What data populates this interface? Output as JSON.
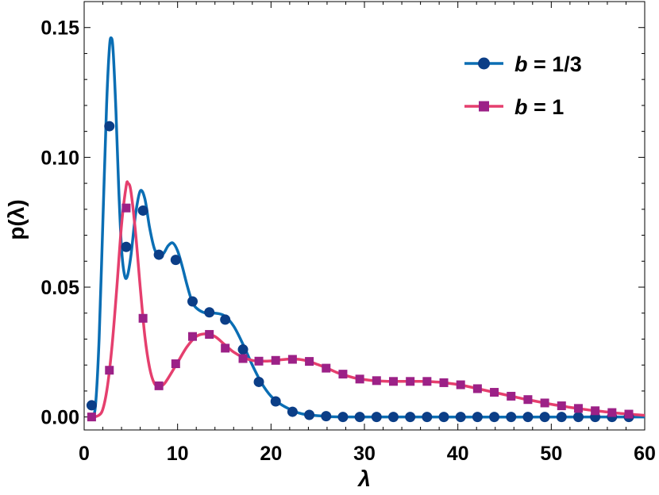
{
  "chart_data": {
    "type": "line",
    "xlabel": "λ",
    "ylabel": "p(λ)",
    "xlim": [
      0,
      60
    ],
    "ylim": [
      -0.005,
      0.16
    ],
    "xticks": [
      "0",
      "10",
      "20",
      "30",
      "40",
      "50",
      "60"
    ],
    "yticks": [
      "0.00",
      "0.05",
      "0.10",
      "0.15"
    ],
    "grid": false,
    "legend_position": "top-right",
    "series": [
      {
        "name": "b = 1/3",
        "name_var": "b",
        "name_rest": " = 1/3",
        "color": "#0A6EB4",
        "marker_color": "#0B3E87",
        "marker": "circle",
        "curve": [
          [
            0.8,
            0.0
          ],
          [
            1.2,
            0.004
          ],
          [
            1.6,
            0.03
          ],
          [
            2.0,
            0.075
          ],
          [
            2.4,
            0.12
          ],
          [
            2.7,
            0.142
          ],
          [
            2.9,
            0.146
          ],
          [
            3.1,
            0.141
          ],
          [
            3.4,
            0.118
          ],
          [
            3.7,
            0.088
          ],
          [
            4.0,
            0.065
          ],
          [
            4.3,
            0.055
          ],
          [
            4.6,
            0.054
          ],
          [
            5.0,
            0.062
          ],
          [
            5.5,
            0.078
          ],
          [
            6.0,
            0.087
          ],
          [
            6.5,
            0.084
          ],
          [
            7.0,
            0.073
          ],
          [
            7.5,
            0.065
          ],
          [
            8.0,
            0.062
          ],
          [
            8.5,
            0.063
          ],
          [
            9.0,
            0.066
          ],
          [
            9.5,
            0.067
          ],
          [
            10.0,
            0.064
          ],
          [
            10.5,
            0.058
          ],
          [
            11.0,
            0.051
          ],
          [
            11.5,
            0.045
          ],
          [
            12.0,
            0.042
          ],
          [
            13.0,
            0.04
          ],
          [
            14.0,
            0.04
          ],
          [
            15.0,
            0.039
          ],
          [
            16.0,
            0.035
          ],
          [
            17.0,
            0.028
          ],
          [
            18.0,
            0.02
          ],
          [
            19.0,
            0.013
          ],
          [
            20.0,
            0.008
          ],
          [
            21.0,
            0.005
          ],
          [
            22.0,
            0.003
          ],
          [
            23.0,
            0.0015
          ],
          [
            24.0,
            0.0008
          ],
          [
            26.0,
            0.0003
          ],
          [
            30.0,
            0.0
          ],
          [
            60.0,
            0.0
          ]
        ],
        "markers": [
          [
            0.8,
            0.0045
          ],
          [
            2.7,
            0.112
          ],
          [
            4.5,
            0.0655
          ],
          [
            6.3,
            0.0795
          ],
          [
            8.0,
            0.0625
          ],
          [
            9.8,
            0.0605
          ],
          [
            11.6,
            0.0445
          ],
          [
            13.4,
            0.0403
          ],
          [
            15.1,
            0.0375
          ],
          [
            17.0,
            0.026
          ],
          [
            18.7,
            0.0135
          ],
          [
            20.5,
            0.006
          ],
          [
            22.3,
            0.002
          ],
          [
            24.1,
            0.0008
          ],
          [
            25.9,
            0.0003
          ],
          [
            27.7,
            0.0
          ],
          [
            29.5,
            0.0
          ],
          [
            31.3,
            0.0
          ],
          [
            33.1,
            0.0
          ],
          [
            34.9,
            0.0
          ],
          [
            36.7,
            0.0
          ],
          [
            38.5,
            0.0
          ],
          [
            40.3,
            0.0
          ],
          [
            42.1,
            0.0
          ],
          [
            43.9,
            0.0
          ],
          [
            45.7,
            0.0
          ],
          [
            47.5,
            0.0
          ],
          [
            49.3,
            0.0
          ],
          [
            51.1,
            0.0
          ],
          [
            52.9,
            0.0
          ],
          [
            54.7,
            0.0
          ],
          [
            56.5,
            0.0
          ],
          [
            58.3,
            0.0
          ]
        ]
      },
      {
        "name": "b = 1",
        "name_var": "b",
        "name_rest": " = 1",
        "color": "#E53F6E",
        "marker_color": "#9C2187",
        "marker": "square",
        "curve": [
          [
            0.8,
            0.0
          ],
          [
            1.5,
            0.0005
          ],
          [
            2.0,
            0.003
          ],
          [
            2.5,
            0.012
          ],
          [
            3.0,
            0.028
          ],
          [
            3.5,
            0.05
          ],
          [
            4.0,
            0.074
          ],
          [
            4.5,
            0.089
          ],
          [
            4.7,
            0.09
          ],
          [
            5.0,
            0.087
          ],
          [
            5.5,
            0.071
          ],
          [
            6.0,
            0.05
          ],
          [
            6.5,
            0.031
          ],
          [
            7.0,
            0.019
          ],
          [
            7.5,
            0.013
          ],
          [
            8.0,
            0.0118
          ],
          [
            8.5,
            0.0125
          ],
          [
            9.0,
            0.015
          ],
          [
            10.0,
            0.021
          ],
          [
            11.0,
            0.027
          ],
          [
            12.0,
            0.031
          ],
          [
            13.0,
            0.032
          ],
          [
            14.0,
            0.031
          ],
          [
            15.0,
            0.028
          ],
          [
            16.0,
            0.025
          ],
          [
            17.0,
            0.023
          ],
          [
            18.0,
            0.0218
          ],
          [
            19.0,
            0.0215
          ],
          [
            20.0,
            0.0216
          ],
          [
            21.0,
            0.022
          ],
          [
            22.0,
            0.0223
          ],
          [
            23.0,
            0.0222
          ],
          [
            24.0,
            0.0215
          ],
          [
            25.0,
            0.0202
          ],
          [
            26.0,
            0.0188
          ],
          [
            27.0,
            0.0172
          ],
          [
            28.0,
            0.016
          ],
          [
            29.0,
            0.015
          ],
          [
            30.0,
            0.0144
          ],
          [
            31.0,
            0.014
          ],
          [
            32.0,
            0.0138
          ],
          [
            33.0,
            0.0137
          ],
          [
            34.0,
            0.0137
          ],
          [
            35.0,
            0.0137
          ],
          [
            36.0,
            0.0137
          ],
          [
            37.0,
            0.0136
          ],
          [
            38.0,
            0.0134
          ],
          [
            39.0,
            0.013
          ],
          [
            40.0,
            0.0125
          ],
          [
            41.0,
            0.0118
          ],
          [
            42.0,
            0.011
          ],
          [
            43.0,
            0.0102
          ],
          [
            44.0,
            0.0094
          ],
          [
            45.0,
            0.0086
          ],
          [
            46.0,
            0.0078
          ],
          [
            47.0,
            0.007
          ],
          [
            48.0,
            0.0063
          ],
          [
            49.0,
            0.0056
          ],
          [
            50.0,
            0.0049
          ],
          [
            51.0,
            0.0043
          ],
          [
            52.0,
            0.0037
          ],
          [
            53.0,
            0.0032
          ],
          [
            54.0,
            0.0027
          ],
          [
            55.0,
            0.0023
          ],
          [
            56.0,
            0.0019
          ],
          [
            57.0,
            0.0015
          ],
          [
            58.0,
            0.0012
          ],
          [
            59.0,
            0.0009
          ],
          [
            60.0,
            0.0006
          ]
        ],
        "markers": [
          [
            0.8,
            0.0
          ],
          [
            2.7,
            0.018
          ],
          [
            4.5,
            0.0805
          ],
          [
            6.3,
            0.038
          ],
          [
            8.0,
            0.012
          ],
          [
            9.8,
            0.0205
          ],
          [
            11.6,
            0.031
          ],
          [
            13.4,
            0.0318
          ],
          [
            15.1,
            0.0265
          ],
          [
            17.0,
            0.0225
          ],
          [
            18.7,
            0.0215
          ],
          [
            20.5,
            0.0218
          ],
          [
            22.3,
            0.0222
          ],
          [
            24.1,
            0.0214
          ],
          [
            25.9,
            0.0188
          ],
          [
            27.7,
            0.0165
          ],
          [
            29.5,
            0.0146
          ],
          [
            31.3,
            0.014
          ],
          [
            33.1,
            0.0137
          ],
          [
            34.9,
            0.0137
          ],
          [
            36.7,
            0.0137
          ],
          [
            38.5,
            0.0132
          ],
          [
            40.3,
            0.0124
          ],
          [
            42.1,
            0.0109
          ],
          [
            43.9,
            0.0095
          ],
          [
            45.7,
            0.008
          ],
          [
            47.5,
            0.0067
          ],
          [
            49.3,
            0.0054
          ],
          [
            51.1,
            0.0043
          ],
          [
            52.9,
            0.0033
          ],
          [
            54.7,
            0.0024
          ],
          [
            56.5,
            0.0017
          ],
          [
            58.3,
            0.0011
          ]
        ]
      }
    ]
  }
}
